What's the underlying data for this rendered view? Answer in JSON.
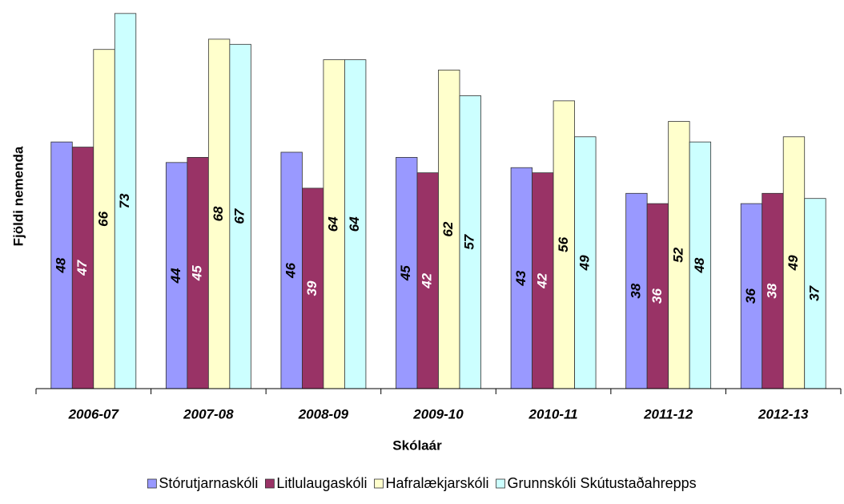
{
  "chart_data": {
    "type": "bar",
    "xlabel": "Skólaár",
    "ylabel": "Fjöldi nemenda",
    "categories": [
      "2006-07",
      "2007-08",
      "2008-09",
      "2009-10",
      "2010-11",
      "2011-12",
      "2012-13"
    ],
    "series": [
      {
        "name": "Stórutjarnaskóli",
        "color": "#9999ff",
        "values": [
          48,
          44,
          46,
          45,
          43,
          38,
          36
        ]
      },
      {
        "name": "Litlulaugaskóli",
        "color": "#993366",
        "values": [
          47,
          45,
          39,
          42,
          42,
          36,
          38
        ]
      },
      {
        "name": "Hafralækjarskóli",
        "color": "#ffffcc",
        "values": [
          66,
          68,
          64,
          62,
          56,
          52,
          49
        ]
      },
      {
        "name": "Grunnskóli Skútustaðahrepps",
        "color": "#ccffff",
        "values": [
          73,
          67,
          64,
          57,
          49,
          48,
          37
        ]
      }
    ],
    "ylim": [
      0,
      75
    ],
    "legend": "bottom"
  }
}
